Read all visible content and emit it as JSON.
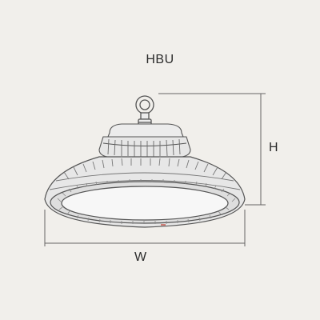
{
  "diagram": {
    "model": "HBU",
    "height_label": "H",
    "width_label": "W",
    "colors": {
      "background": "#f1efeb",
      "line": "#555555",
      "housing_fill": "#e7e7e7",
      "lens_fill": "#f7f7f7",
      "accent": "#c0392b"
    },
    "icons": [
      "eye-bolt-icon",
      "heat-sink-fins",
      "led-lens"
    ]
  }
}
